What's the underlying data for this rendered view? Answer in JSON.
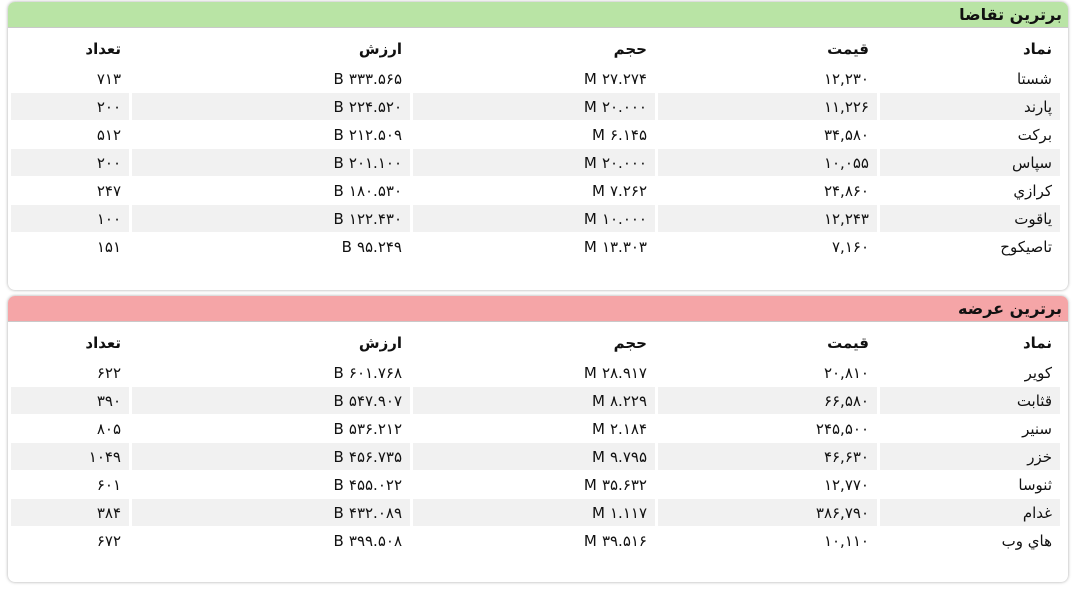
{
  "demand": {
    "title": "برترین تقاضا",
    "headers": [
      "نماد",
      "قیمت",
      "حجم",
      "ارزش",
      "تعداد"
    ],
    "rows": [
      {
        "symbol": "شستا",
        "price": "۱۲,۲۳۰",
        "volume": "۲۷.۲۷۴ M",
        "value": "۳۳۳.۵۶۵ B",
        "count": "۷۱۳"
      },
      {
        "symbol": "پارند",
        "price": "۱۱,۲۲۶",
        "volume": "۲۰.۰۰۰ M",
        "value": "۲۲۴.۵۲۰ B",
        "count": "۲۰۰"
      },
      {
        "symbol": "برکت",
        "price": "۳۴,۵۸۰",
        "volume": "۶.۱۴۵ M",
        "value": "۲۱۲.۵۰۹ B",
        "count": "۵۱۲"
      },
      {
        "symbol": "سپاس",
        "price": "۱۰,۰۵۵",
        "volume": "۲۰.۰۰۰ M",
        "value": "۲۰۱.۱۰۰ B",
        "count": "۲۰۰"
      },
      {
        "symbol": "كرازي",
        "price": "۲۴,۸۶۰",
        "volume": "۷.۲۶۲ M",
        "value": "۱۸۰.۵۳۰ B",
        "count": "۲۴۷"
      },
      {
        "symbol": "ياقوت",
        "price": "۱۲,۲۴۳",
        "volume": "۱۰.۰۰۰ M",
        "value": "۱۲۲.۴۳۰ B",
        "count": "۱۰۰"
      },
      {
        "symbol": "تاصيكوح",
        "price": "۷,۱۶۰",
        "volume": "۱۳.۳۰۳ M",
        "value": "۹۵.۲۴۹ B",
        "count": "۱۵۱"
      }
    ]
  },
  "supply": {
    "title": "برترین عرضه",
    "headers": [
      "نماد",
      "قیمت",
      "حجم",
      "ارزش",
      "تعداد"
    ],
    "rows": [
      {
        "symbol": "كوير",
        "price": "۲۰,۸۱۰",
        "volume": "۲۸.۹۱۷ M",
        "value": "۶۰۱.۷۶۸ B",
        "count": "۶۲۲"
      },
      {
        "symbol": "قثابت",
        "price": "۶۶,۵۸۰",
        "volume": "۸.۲۲۹ M",
        "value": "۵۴۷.۹۰۷ B",
        "count": "۳۹۰"
      },
      {
        "symbol": "سنیر",
        "price": "۲۴۵,۵۰۰",
        "volume": "۲.۱۸۴ M",
        "value": "۵۳۶.۲۱۲ B",
        "count": "۸۰۵"
      },
      {
        "symbol": "خزر",
        "price": "۴۶,۶۳۰",
        "volume": "۹.۷۹۵ M",
        "value": "۴۵۶.۷۳۵ B",
        "count": "۱۰۴۹"
      },
      {
        "symbol": "ثنوسا",
        "price": "۱۲,۷۷۰",
        "volume": "۳۵.۶۳۲ M",
        "value": "۴۵۵.۰۲۲ B",
        "count": "۶۰۱"
      },
      {
        "symbol": "غدام",
        "price": "۳۸۶,۷۹۰",
        "volume": "۱.۱۱۷ M",
        "value": "۴۳۲.۰۸۹ B",
        "count": "۳۸۴"
      },
      {
        "symbol": "هاي وب",
        "price": "۱۰,۱۱۰",
        "volume": "۳۹.۵۱۶ M",
        "value": "۳۹۹.۵۰۸ B",
        "count": "۶۷۲"
      }
    ]
  }
}
